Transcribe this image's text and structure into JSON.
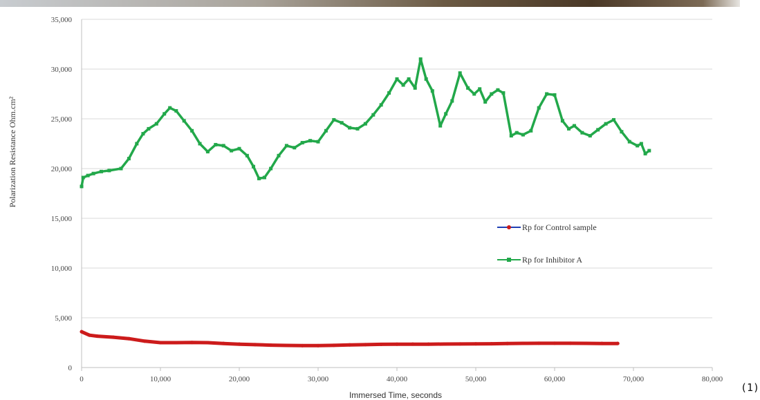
{
  "equation_number": "(1)",
  "chart_data": {
    "type": "line",
    "title": "",
    "xlabel": "Immersed Time,  seconds",
    "ylabel": "Polarization Resistance Ohm.cm²",
    "xlim": [
      0,
      80000
    ],
    "ylim": [
      0,
      35000
    ],
    "x_ticks": [
      "0",
      "10,000",
      "20,000",
      "30,000",
      "40,000",
      "50,000",
      "60,000",
      "70,000",
      "80,000"
    ],
    "y_ticks": [
      "0",
      "5,000",
      "10,000",
      "15,000",
      "20,000",
      "25,000",
      "30,000",
      "35,000"
    ],
    "grid": "horizontal",
    "legend_position": "center-right",
    "series": [
      {
        "name": "Rp for Control sample",
        "color": "#cc1b1b",
        "legend_color": "#1f3fb4",
        "marker": "circle",
        "x": [
          0,
          1000,
          2000,
          4000,
          6000,
          8000,
          10000,
          12000,
          14000,
          16000,
          18000,
          20000,
          22000,
          24000,
          26000,
          28000,
          30000,
          32000,
          34000,
          36000,
          38000,
          40000,
          42000,
          44000,
          46000,
          48000,
          50000,
          52000,
          54000,
          56000,
          58000,
          60000,
          62000,
          64000,
          66000,
          68000
        ],
        "values": [
          3600,
          3250,
          3150,
          3050,
          2900,
          2650,
          2500,
          2500,
          2520,
          2500,
          2420,
          2350,
          2300,
          2250,
          2220,
          2200,
          2200,
          2230,
          2270,
          2300,
          2330,
          2340,
          2350,
          2350,
          2360,
          2370,
          2380,
          2390,
          2410,
          2430,
          2440,
          2440,
          2440,
          2430,
          2420,
          2420
        ]
      },
      {
        "name": "Rp for Inhibitor A",
        "color": "#22a84a",
        "legend_color": "#22a84a",
        "marker": "square",
        "x": [
          0,
          200,
          800,
          1500,
          2500,
          3500,
          5000,
          6000,
          7000,
          7800,
          8500,
          9500,
          10500,
          11200,
          12000,
          13000,
          14000,
          15000,
          16000,
          17000,
          18000,
          19000,
          20000,
          21000,
          21800,
          22500,
          23200,
          24000,
          25000,
          26000,
          27000,
          28000,
          29000,
          30000,
          31000,
          32000,
          33000,
          34000,
          35000,
          36000,
          37000,
          38000,
          39000,
          40000,
          40800,
          41500,
          42300,
          43000,
          43700,
          44500,
          45500,
          46200,
          47000,
          48000,
          49000,
          49800,
          50500,
          51200,
          52000,
          52800,
          53500,
          54500,
          55200,
          56000,
          57000,
          58000,
          59000,
          60000,
          61000,
          61800,
          62500,
          63500,
          64500,
          65500,
          66500,
          67500,
          68500,
          69500,
          70500,
          71000,
          71500,
          72000
        ],
        "values": [
          18200,
          19100,
          19300,
          19500,
          19700,
          19800,
          20000,
          21000,
          22500,
          23500,
          24000,
          24500,
          25500,
          26100,
          25800,
          24800,
          23800,
          22500,
          21700,
          22400,
          22300,
          21800,
          22000,
          21300,
          20200,
          19000,
          19100,
          20000,
          21300,
          22300,
          22100,
          22600,
          22800,
          22700,
          23800,
          24900,
          24600,
          24100,
          24000,
          24500,
          25400,
          26400,
          27600,
          29000,
          28400,
          29000,
          28100,
          31000,
          29000,
          27800,
          24300,
          25500,
          26800,
          29600,
          28100,
          27500,
          28000,
          26700,
          27500,
          27900,
          27600,
          23300,
          23600,
          23400,
          23800,
          26100,
          27500,
          27400,
          24800,
          24000,
          24300,
          23600,
          23300,
          23900,
          24500,
          24900,
          23700,
          22700,
          22300,
          22500,
          21500,
          21800
        ]
      }
    ]
  }
}
